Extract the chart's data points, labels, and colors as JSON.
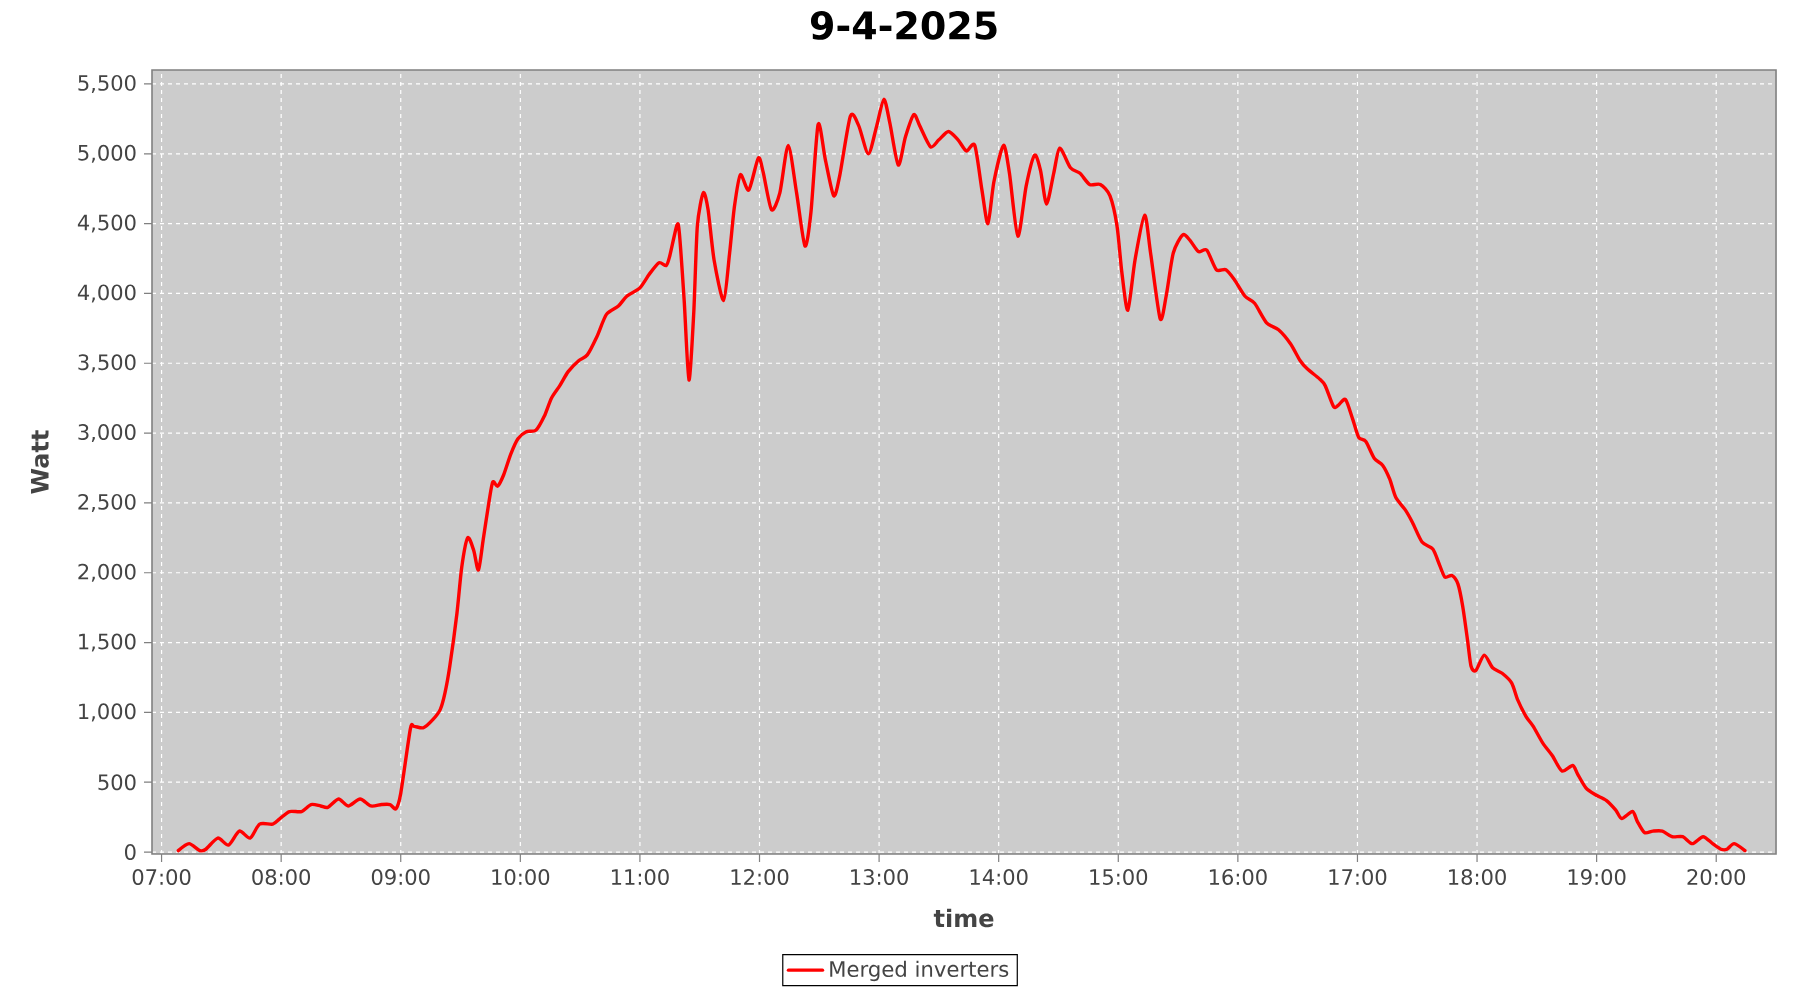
{
  "chart_data": {
    "type": "line",
    "title": "9-4-2025",
    "xlabel": "time",
    "ylabel": "Watt",
    "xlim": [
      6.92,
      20.5
    ],
    "ylim": [
      -14,
      5600
    ],
    "xticks": [
      {
        "value": 7,
        "label": "07:00"
      },
      {
        "value": 8,
        "label": "08:00"
      },
      {
        "value": 9,
        "label": "09:00"
      },
      {
        "value": 10,
        "label": "10:00"
      },
      {
        "value": 11,
        "label": "11:00"
      },
      {
        "value": 12,
        "label": "12:00"
      },
      {
        "value": 13,
        "label": "13:00"
      },
      {
        "value": 14,
        "label": "14:00"
      },
      {
        "value": 15,
        "label": "15:00"
      },
      {
        "value": 16,
        "label": "16:00"
      },
      {
        "value": 17,
        "label": "17:00"
      },
      {
        "value": 18,
        "label": "18:00"
      },
      {
        "value": 19,
        "label": "19:00"
      },
      {
        "value": 20,
        "label": "20:00"
      }
    ],
    "yticks": [
      0,
      500,
      {
        "value": 1000,
        "label": "1,000"
      },
      {
        "value": 1500,
        "label": "1,500"
      },
      {
        "value": 2000,
        "label": "2,000"
      },
      {
        "value": 2500,
        "label": "2,500"
      },
      {
        "value": 3000,
        "label": "3,000"
      },
      {
        "value": 3500,
        "label": "3,500"
      },
      {
        "value": 4000,
        "label": "4,000"
      },
      {
        "value": 4500,
        "label": "4,500"
      },
      {
        "value": 5000,
        "label": "5,000"
      },
      {
        "value": 5500,
        "label": "5,500"
      }
    ],
    "grid": true,
    "legend": "bottom",
    "line_style": "solid",
    "x": [
      7.14,
      7.23,
      7.32,
      7.37,
      7.47,
      7.56,
      7.65,
      7.74,
      7.82,
      7.93,
      7.99,
      8.07,
      8.17,
      8.25,
      8.33,
      8.39,
      8.48,
      8.56,
      8.66,
      8.75,
      8.84,
      8.91,
      8.96,
      9.0,
      9.08,
      9.11,
      9.19,
      9.27,
      9.33,
      9.37,
      9.41,
      9.47,
      9.51,
      9.56,
      9.61,
      9.65,
      9.69,
      9.74,
      9.77,
      9.81,
      9.86,
      9.92,
      9.98,
      10.05,
      10.13,
      10.2,
      10.26,
      10.33,
      10.4,
      10.49,
      10.56,
      10.64,
      10.72,
      10.82,
      10.89,
      11.0,
      11.08,
      11.16,
      11.22,
      11.25,
      11.31,
      11.33,
      11.37,
      11.41,
      11.45,
      11.48,
      11.53,
      11.57,
      11.62,
      11.7,
      11.75,
      11.79,
      11.84,
      11.91,
      11.99,
      12.03,
      12.1,
      12.17,
      12.24,
      12.31,
      12.38,
      12.43,
      12.49,
      12.55,
      12.62,
      12.67,
      12.76,
      12.83,
      12.91,
      12.98,
      13.04,
      13.09,
      13.16,
      13.22,
      13.29,
      13.34,
      13.43,
      13.5,
      13.58,
      13.66,
      13.73,
      13.8,
      13.86,
      13.91,
      13.96,
      14.04,
      14.09,
      14.16,
      14.23,
      14.3,
      14.35,
      14.4,
      14.46,
      14.51,
      14.6,
      14.68,
      14.76,
      14.85,
      14.93,
      14.99,
      15.03,
      15.08,
      15.14,
      15.22,
      15.27,
      15.35,
      15.4,
      15.46,
      15.54,
      15.6,
      15.67,
      15.74,
      15.82,
      15.9,
      15.97,
      16.06,
      16.14,
      16.24,
      16.34,
      16.44,
      16.52,
      16.58,
      16.68,
      16.73,
      16.8,
      16.84,
      16.9,
      16.96,
      17.01,
      17.07,
      17.14,
      17.21,
      17.27,
      17.32,
      17.4,
      17.46,
      17.54,
      17.63,
      17.68,
      17.73,
      17.79,
      17.84,
      17.88,
      17.92,
      17.95,
      17.99,
      18.06,
      18.13,
      18.21,
      18.29,
      18.34,
      18.41,
      18.47,
      18.55,
      18.63,
      18.71,
      18.8,
      18.84,
      18.91,
      18.99,
      19.08,
      19.16,
      19.21,
      19.3,
      19.34,
      19.4,
      19.47,
      19.55,
      19.63,
      19.72,
      19.8,
      19.89,
      19.97,
      20.04,
      20.09,
      20.15,
      20.24
    ],
    "series": [
      {
        "name": "Merged inverters",
        "color": "#ff0000",
        "values": [
          10,
          60,
          10,
          20,
          100,
          50,
          150,
          100,
          200,
          200,
          240,
          290,
          290,
          340,
          330,
          320,
          380,
          330,
          380,
          330,
          340,
          340,
          310,
          420,
          880,
          900,
          890,
          950,
          1020,
          1140,
          1330,
          1710,
          2040,
          2250,
          2160,
          2020,
          2240,
          2520,
          2650,
          2620,
          2700,
          2850,
          2960,
          3010,
          3020,
          3120,
          3250,
          3340,
          3440,
          3520,
          3560,
          3690,
          3850,
          3910,
          3980,
          4040,
          4140,
          4220,
          4200,
          4270,
          4490,
          4430,
          3950,
          3380,
          3860,
          4480,
          4720,
          4600,
          4240,
          3950,
          4290,
          4620,
          4850,
          4740,
          4970,
          4870,
          4600,
          4720,
          5060,
          4720,
          4340,
          4580,
          5210,
          4960,
          4700,
          4840,
          5270,
          5200,
          5000,
          5200,
          5390,
          5220,
          4920,
          5120,
          5280,
          5200,
          5050,
          5100,
          5160,
          5100,
          5020,
          5060,
          4740,
          4500,
          4800,
          5060,
          4860,
          4410,
          4770,
          4990,
          4880,
          4640,
          4860,
          5040,
          4900,
          4860,
          4780,
          4780,
          4700,
          4480,
          4150,
          3880,
          4240,
          4560,
          4290,
          3820,
          3980,
          4290,
          4420,
          4380,
          4300,
          4310,
          4170,
          4170,
          4100,
          3980,
          3930,
          3790,
          3740,
          3640,
          3520,
          3460,
          3390,
          3340,
          3190,
          3200,
          3240,
          3100,
          2970,
          2940,
          2820,
          2770,
          2670,
          2540,
          2450,
          2360,
          2220,
          2170,
          2070,
          1970,
          1980,
          1920,
          1760,
          1520,
          1330,
          1300,
          1410,
          1320,
          1280,
          1210,
          1090,
          970,
          900,
          780,
          690,
          580,
          620,
          560,
          460,
          410,
          370,
          300,
          240,
          290,
          220,
          140,
          150,
          150,
          110,
          110,
          60,
          110,
          60,
          20,
          20,
          60,
          10
        ]
      }
    ]
  }
}
